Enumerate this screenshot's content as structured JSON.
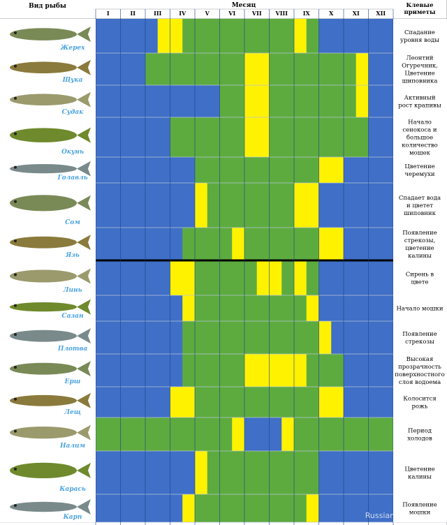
{
  "header": {
    "fish_col": "Вид рыбы",
    "month_col": "Месяц",
    "signs_col": "Клевые приметы"
  },
  "watermark": "Russian-fishing.net",
  "colors": {
    "no_bite": "#3f6fc6",
    "good_bite": "#5dab3f",
    "best_bite": "#fff200",
    "grid": "#1c3f8c"
  },
  "chart_data": {
    "type": "heatmap",
    "categories": [
      "I",
      "II",
      "III",
      "IV",
      "V",
      "VI",
      "VII",
      "VIII",
      "IX",
      "X",
      "XI",
      "XII"
    ],
    "level_codes": {
      "B": "no bite",
      "G": "good bite",
      "Y": "best bite"
    },
    "rows": [
      {
        "fish": "Жерех",
        "sign": "Спадание уровня воды",
        "cells": [
          "B",
          "B",
          "BY",
          "YG",
          "G",
          "G",
          "G",
          "G",
          "YG",
          "B",
          "B",
          "B"
        ]
      },
      {
        "fish": "Щука",
        "sign": "Леонтий Огуречник, Цветение шиповника",
        "cells": [
          "B",
          "B",
          "G",
          "G",
          "G",
          "G",
          "Y",
          "G",
          "G",
          "G",
          "GY",
          "B"
        ]
      },
      {
        "fish": "Судак",
        "sign": "Активный рост крапивы",
        "cells": [
          "B",
          "B",
          "B",
          "B",
          "B",
          "G",
          "Y",
          "G",
          "G",
          "G",
          "GY",
          "B"
        ]
      },
      {
        "fish": "Окунь",
        "sign": "Начало сенокоса и большое количество мошек",
        "cells": [
          "B",
          "B",
          "B",
          "G",
          "G",
          "G",
          "Y",
          "G",
          "G",
          "G",
          "G",
          "B"
        ]
      },
      {
        "fish": "Голавль",
        "sign": "Цветение черемухи",
        "cells": [
          "B",
          "B",
          "B",
          "B",
          "G",
          "G",
          "G",
          "G",
          "G",
          "Y",
          "B",
          "B"
        ]
      },
      {
        "fish": "Сом",
        "sign": "Спадает вода и цветет шиповник",
        "cells": [
          "B",
          "B",
          "B",
          "B",
          "YG",
          "G",
          "G",
          "G",
          "Y",
          "B",
          "B",
          "B"
        ]
      },
      {
        "fish": "Язь",
        "sign": "Появление стрекозы, цветение калины",
        "cells": [
          "B",
          "B",
          "B",
          "BG",
          "G",
          "GY",
          "G",
          "G",
          "G",
          "Y",
          "B",
          "B"
        ]
      },
      {
        "fish": "Линь",
        "sign": "Сирень в цвете",
        "cells": [
          "B",
          "B",
          "B",
          "Y",
          "G",
          "G",
          "GY",
          "YG",
          "YG",
          "B",
          "B",
          "B"
        ]
      },
      {
        "fish": "Сазан",
        "sign": "Начало мошки",
        "cells": [
          "B",
          "B",
          "B",
          "BY",
          "G",
          "G",
          "G",
          "G",
          "GY",
          "B",
          "B",
          "B"
        ]
      },
      {
        "fish": "Плотва",
        "sign": "Появление стрекозы",
        "cells": [
          "B",
          "B",
          "B",
          "BG",
          "G",
          "G",
          "G",
          "G",
          "G",
          "YB",
          "B",
          "B"
        ]
      },
      {
        "fish": "Ерш",
        "sign": "Высокая прозрачность поверхностного слоя водоема",
        "cells": [
          "B",
          "B",
          "B",
          "BG",
          "G",
          "G",
          "Y",
          "Y",
          "YG",
          "G",
          "B",
          "B"
        ]
      },
      {
        "fish": "Лещ",
        "sign": "Колосится рожь",
        "cells": [
          "B",
          "B",
          "B",
          "Y",
          "G",
          "G",
          "G",
          "G",
          "G",
          "Y",
          "B",
          "B"
        ]
      },
      {
        "fish": "Налим",
        "sign": "Период холодов",
        "cells": [
          "G",
          "G",
          "G",
          "G",
          "G",
          "GY",
          "B",
          "BY",
          "G",
          "G",
          "G",
          "G"
        ]
      },
      {
        "fish": "Карась",
        "sign": "Цветение калины",
        "cells": [
          "B",
          "B",
          "B",
          "B",
          "YG",
          "G",
          "G",
          "G",
          "G",
          "B",
          "B",
          "B"
        ]
      },
      {
        "fish": "Карп",
        "sign": "Появление мошки",
        "cells": [
          "B",
          "B",
          "B",
          "BY",
          "G",
          "G",
          "G",
          "G",
          "GY",
          "B",
          "B",
          "B"
        ]
      }
    ]
  }
}
